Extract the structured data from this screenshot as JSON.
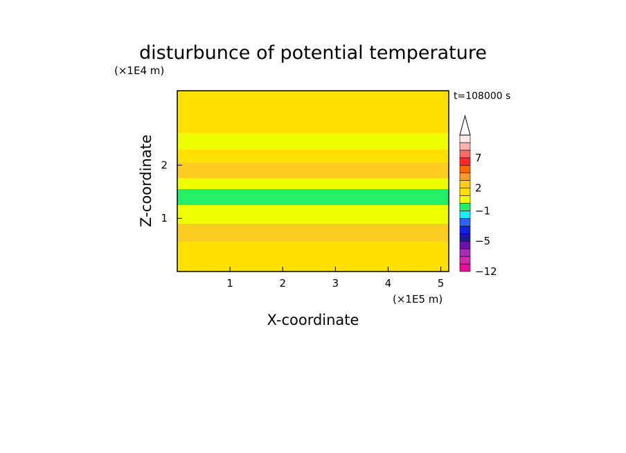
{
  "chart_data": {
    "type": "heatmap",
    "title": "disturbunce of potential temperature",
    "time_label": "t=108000 s",
    "xlabel": "X-coordinate",
    "ylabel": "Z-coordinate",
    "x_unit": "(×1E5 m)",
    "y_unit": "(×1E4 m)",
    "xlim": [
      0,
      5.15
    ],
    "ylim": [
      0,
      3.4
    ],
    "x_ticks": [
      1,
      2,
      3,
      4,
      5
    ],
    "y_ticks": [
      1,
      2
    ],
    "colorbar": {
      "labels": [
        {
          "value": "7",
          "level": 7
        },
        {
          "value": "2",
          "level": 2
        },
        {
          "value": "−1",
          "level": -1
        },
        {
          "value": "−5",
          "level": -5
        },
        {
          "value": "−12",
          "level": -12
        }
      ],
      "levels": [
        -12,
        -10,
        -8,
        -6,
        -5,
        -4,
        -3,
        -2,
        -1,
        0,
        1,
        2,
        3,
        4,
        5,
        7,
        9,
        11,
        13
      ],
      "colors": [
        "#e8109a",
        "#cc2aa8",
        "#a82cb4",
        "#6a10b0",
        "#1a1aa0",
        "#1222e8",
        "#2a64ff",
        "#22e8ff",
        "#22ee66",
        "#eeff00",
        "#ffe000",
        "#ffcc22",
        "#ff9a22",
        "#ff6a00",
        "#ff2a2a",
        "#ff6a6a",
        "#ffb0b0",
        "#ffe8e8"
      ],
      "extend": "max"
    },
    "field_bands": [
      {
        "z": [
          0.0,
          0.55
        ],
        "value": 1
      },
      {
        "z": [
          0.55,
          0.9
        ],
        "value": 2
      },
      {
        "z": [
          0.9,
          1.25
        ],
        "value": 0
      },
      {
        "z": [
          1.25,
          1.55
        ],
        "value": -1
      },
      {
        "z": [
          1.55,
          1.75
        ],
        "value": 0
      },
      {
        "z": [
          1.75,
          2.05
        ],
        "value": 2
      },
      {
        "z": [
          2.05,
          2.3
        ],
        "value": 1
      },
      {
        "z": [
          2.3,
          2.6
        ],
        "value": 0
      },
      {
        "z": [
          2.6,
          3.4
        ],
        "value": 1
      }
    ]
  }
}
